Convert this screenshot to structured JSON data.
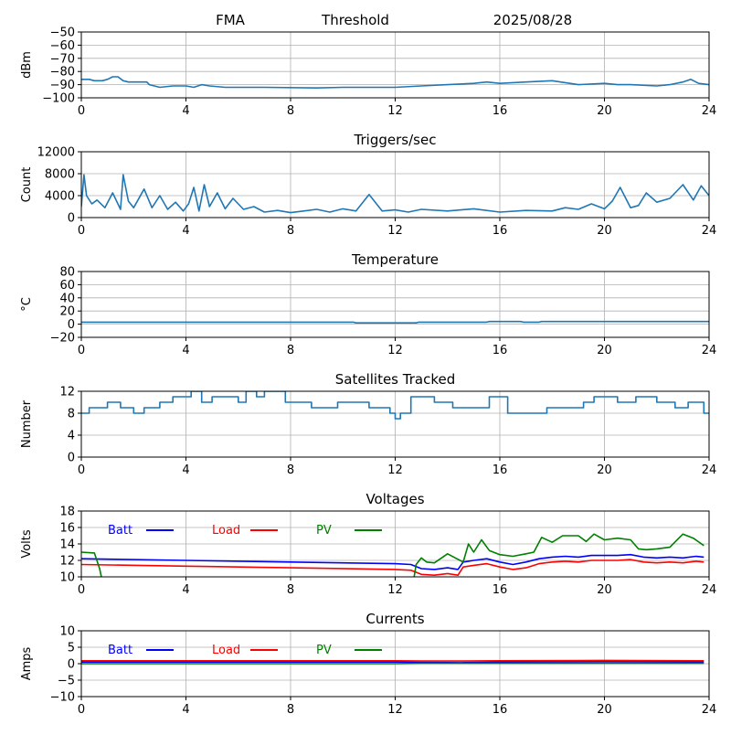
{
  "header": {
    "station": "FMA",
    "mode": "Threshold",
    "date": "2025/08/28"
  },
  "chart_data": [
    {
      "id": "signal",
      "type": "line",
      "title": "",
      "ylabel": "dBm",
      "ylim": [
        -100,
        -50
      ],
      "yticks": [
        -100,
        -90,
        -80,
        -70,
        -60,
        -50
      ],
      "xlim": [
        0,
        24
      ],
      "xticks": [
        0,
        4,
        8,
        12,
        16,
        20,
        24
      ],
      "grid": true,
      "series": [
        {
          "color": "#1f77b4",
          "x": [
            0,
            0.3,
            0.5,
            0.8,
            1.0,
            1.2,
            1.4,
            1.6,
            1.8,
            2.0,
            2.5,
            2.6,
            3.0,
            3.5,
            4.0,
            4.3,
            4.6,
            4.9,
            5.5,
            7.0,
            9.0,
            10.0,
            11.0,
            12.0,
            13.0,
            14.0,
            15.0,
            15.5,
            16.0,
            17.0,
            18.0,
            19.0,
            20.0,
            20.5,
            21.0,
            22.0,
            22.5,
            23.0,
            23.3,
            23.6,
            24.0
          ],
          "y": [
            -86,
            -86,
            -87,
            -87,
            -86,
            -84,
            -84,
            -87,
            -88,
            -88,
            -88,
            -90,
            -92,
            -91,
            -91,
            -92,
            -90,
            -91,
            -92,
            -92,
            -92.5,
            -92,
            -92,
            -92,
            -91,
            -90,
            -89,
            -88,
            -89,
            -88,
            -87,
            -90,
            -89,
            -90,
            -90,
            -91,
            -90,
            -88,
            -86,
            -89,
            -90
          ]
        }
      ]
    },
    {
      "id": "triggers",
      "type": "line",
      "title": "Triggers/sec",
      "ylabel": "Count",
      "ylim": [
        0,
        12000
      ],
      "yticks": [
        0,
        4000,
        8000,
        12000
      ],
      "xlim": [
        0,
        24
      ],
      "xticks": [
        0,
        4,
        8,
        12,
        16,
        20,
        24
      ],
      "grid": true,
      "series": [
        {
          "color": "#1f77b4",
          "x": [
            0,
            0.1,
            0.2,
            0.4,
            0.6,
            0.9,
            1.2,
            1.5,
            1.6,
            1.8,
            2.0,
            2.4,
            2.7,
            3.0,
            3.3,
            3.6,
            3.9,
            4.1,
            4.3,
            4.5,
            4.7,
            4.9,
            5.2,
            5.5,
            5.8,
            6.2,
            6.6,
            7.0,
            7.5,
            8.0,
            8.5,
            9.0,
            9.5,
            10.0,
            10.5,
            11.0,
            11.5,
            12.0,
            12.5,
            13.0,
            14.0,
            15.0,
            16.0,
            17.0,
            18.0,
            18.5,
            19.0,
            19.5,
            20.0,
            20.3,
            20.6,
            21.0,
            21.3,
            21.6,
            22.0,
            22.5,
            23.0,
            23.4,
            23.7,
            24.0
          ],
          "y": [
            2000,
            7800,
            4000,
            2500,
            3200,
            1800,
            4500,
            1500,
            7800,
            3000,
            1800,
            5200,
            1800,
            4000,
            1500,
            2800,
            1200,
            2500,
            5500,
            1200,
            6000,
            2000,
            4500,
            1600,
            3500,
            1500,
            2000,
            1000,
            1300,
            900,
            1200,
            1500,
            1000,
            1600,
            1200,
            4200,
            1200,
            1400,
            1000,
            1500,
            1200,
            1600,
            1000,
            1300,
            1200,
            1800,
            1500,
            2500,
            1600,
            3000,
            5500,
            1800,
            2200,
            4500,
            2800,
            3500,
            6000,
            3200,
            5800,
            4000
          ]
        }
      ]
    },
    {
      "id": "temperature",
      "type": "line",
      "title": "Temperature",
      "ylabel": "°C",
      "ylim": [
        -20,
        80
      ],
      "yticks": [
        -20,
        0,
        20,
        40,
        60,
        80
      ],
      "xlim": [
        0,
        24
      ],
      "xticks": [
        0,
        4,
        8,
        12,
        16,
        20,
        24
      ],
      "grid": true,
      "series": [
        {
          "color": "#1f77b4",
          "x": [
            0,
            10.4,
            10.5,
            12.8,
            12.9,
            15.5,
            15.6,
            16.8,
            16.9,
            17.5,
            17.6,
            24
          ],
          "y": [
            3,
            3,
            2,
            2,
            3,
            3,
            4,
            4,
            3,
            3,
            4,
            4
          ]
        }
      ]
    },
    {
      "id": "satellites",
      "type": "line",
      "title": "Satellites Tracked",
      "ylabel": "Number",
      "ylim": [
        0,
        12
      ],
      "yticks": [
        0,
        4,
        8,
        12
      ],
      "xlim": [
        0,
        24
      ],
      "xticks": [
        0,
        4,
        8,
        12,
        16,
        20,
        24
      ],
      "grid": true,
      "step": true,
      "series": [
        {
          "color": "#1f77b4",
          "x": [
            0,
            0.3,
            0.9,
            1.0,
            1.5,
            2.0,
            2.4,
            3.0,
            3.5,
            4.0,
            4.2,
            4.6,
            5.0,
            6.0,
            6.3,
            6.7,
            7.0,
            7.8,
            8.8,
            9.8,
            10.3,
            11.0,
            11.8,
            12.0,
            12.2,
            12.6,
            13.5,
            14.2,
            15.0,
            15.6,
            16.3,
            17.4,
            17.8,
            18.5,
            19.2,
            19.6,
            20.5,
            21.2,
            22.0,
            22.7,
            23.2,
            23.8,
            24.0
          ],
          "y": [
            8,
            9,
            9,
            10,
            9,
            8,
            9,
            10,
            11,
            11,
            12,
            10,
            11,
            10,
            12,
            11,
            12,
            10,
            9,
            10,
            10,
            9,
            8,
            7,
            8,
            11,
            10,
            9,
            9,
            11,
            8,
            8,
            9,
            9,
            10,
            11,
            10,
            11,
            10,
            9,
            10,
            8,
            8
          ]
        }
      ]
    },
    {
      "id": "voltages",
      "type": "line",
      "title": "Voltages",
      "ylabel": "Volts",
      "ylim": [
        10,
        18
      ],
      "yticks": [
        10,
        12,
        14,
        16,
        18
      ],
      "xlim": [
        0,
        24
      ],
      "xticks": [
        0,
        4,
        8,
        12,
        16,
        20,
        24
      ],
      "grid": true,
      "legend": "top-left",
      "series": [
        {
          "name": "Batt",
          "color": "#0000ff",
          "x": [
            0,
            4,
            8,
            12,
            12.6,
            13.0,
            13.5,
            14.0,
            14.4,
            14.6,
            14.8,
            15.0,
            15.5,
            16.0,
            16.5,
            17.0,
            17.5,
            18.0,
            18.5,
            19.0,
            19.5,
            20.0,
            20.5,
            21.0,
            21.5,
            22.0,
            22.5,
            23.0,
            23.5,
            23.8
          ],
          "y": [
            12.2,
            12.0,
            11.8,
            11.6,
            11.5,
            11.0,
            10.9,
            11.1,
            10.9,
            11.8,
            11.9,
            12.0,
            12.2,
            11.8,
            11.5,
            11.8,
            12.2,
            12.4,
            12.5,
            12.4,
            12.6,
            12.6,
            12.6,
            12.7,
            12.4,
            12.3,
            12.4,
            12.3,
            12.5,
            12.4
          ]
        },
        {
          "name": "Load",
          "color": "#ff0000",
          "x": [
            0,
            4,
            8,
            12,
            12.6,
            13.0,
            13.5,
            14.0,
            14.4,
            14.6,
            14.8,
            15.0,
            15.5,
            16.0,
            16.5,
            17.0,
            17.5,
            18.0,
            18.5,
            19.0,
            19.5,
            20.0,
            20.5,
            21.0,
            21.5,
            22.0,
            22.5,
            23.0,
            23.5,
            23.8
          ],
          "y": [
            11.5,
            11.3,
            11.1,
            10.9,
            10.8,
            10.3,
            10.2,
            10.4,
            10.2,
            11.2,
            11.3,
            11.4,
            11.6,
            11.2,
            10.9,
            11.1,
            11.6,
            11.8,
            11.9,
            11.8,
            12.0,
            12.0,
            12.0,
            12.1,
            11.8,
            11.7,
            11.8,
            11.7,
            11.9,
            11.8
          ]
        },
        {
          "name": "PV",
          "color": "#008000",
          "x": [
            0,
            0.5,
            0.7,
            0.8,
            12.7,
            12.8,
            13.0,
            13.2,
            13.5,
            14.0,
            14.3,
            14.6,
            14.8,
            15.0,
            15.3,
            15.6,
            16.0,
            16.5,
            17.0,
            17.3,
            17.6,
            18.0,
            18.4,
            19.0,
            19.3,
            19.6,
            20.0,
            20.5,
            21.0,
            21.3,
            21.6,
            22.0,
            22.5,
            23.0,
            23.4,
            23.8
          ],
          "y": [
            13.0,
            12.9,
            11.0,
            9.5,
            9.5,
            11.5,
            12.3,
            11.8,
            11.7,
            12.8,
            12.3,
            11.8,
            14.0,
            13.0,
            14.5,
            13.2,
            12.7,
            12.5,
            12.8,
            13.0,
            14.8,
            14.2,
            15.0,
            15.0,
            14.3,
            15.2,
            14.5,
            14.7,
            14.5,
            13.4,
            13.3,
            13.4,
            13.6,
            15.2,
            14.7,
            13.8
          ]
        }
      ]
    },
    {
      "id": "currents",
      "type": "line",
      "title": "Currents",
      "ylabel": "Amps",
      "ylim": [
        -10,
        10
      ],
      "yticks": [
        -10,
        -5,
        0,
        5,
        10
      ],
      "xlim": [
        0,
        24
      ],
      "xticks": [
        0,
        4,
        8,
        12,
        16,
        20,
        24
      ],
      "grid": true,
      "legend": "top-left",
      "series": [
        {
          "name": "Batt",
          "color": "#0000ff",
          "x": [
            0,
            12,
            13,
            14.5,
            16,
            20,
            23.8
          ],
          "y": [
            0.5,
            0.5,
            0.4,
            0.3,
            0.5,
            0.6,
            0.5
          ]
        },
        {
          "name": "Load",
          "color": "#ff0000",
          "x": [
            0,
            12,
            13,
            14.5,
            16,
            20,
            23.8
          ],
          "y": [
            0.9,
            0.9,
            0.8,
            0.8,
            0.9,
            1.0,
            0.9
          ]
        },
        {
          "name": "PV",
          "color": "#008000",
          "x": [
            0,
            12,
            13,
            16,
            20,
            23.8
          ],
          "y": [
            0.0,
            0.0,
            0.1,
            0.1,
            0.1,
            0.1
          ]
        }
      ]
    }
  ]
}
